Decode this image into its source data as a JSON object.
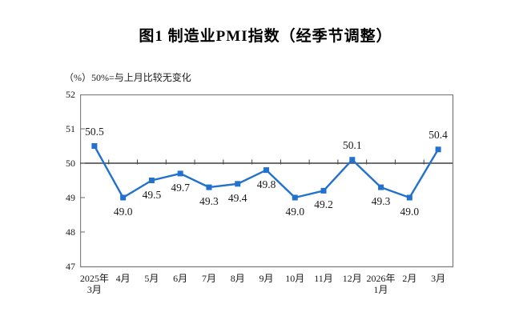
{
  "header": {
    "title": "图1  制造业PMI指数（经季节调整）"
  },
  "chart_data": {
    "type": "line",
    "title": "图1  制造业PMI指数（经季节调整）",
    "unit_note": "（%）50%=与上月比较无变化",
    "categories": [
      "2025年3月",
      "4月",
      "5月",
      "6月",
      "7月",
      "8月",
      "9月",
      "10月",
      "11月",
      "12月",
      "2026年1月",
      "2月",
      "3月"
    ],
    "x_tick_lines": [
      [
        "2025年",
        "3月"
      ],
      [
        "4月"
      ],
      [
        "5月"
      ],
      [
        "6月"
      ],
      [
        "7月"
      ],
      [
        "8月"
      ],
      [
        "9月"
      ],
      [
        "10月"
      ],
      [
        "11月"
      ],
      [
        "12月"
      ],
      [
        "2026年",
        "1月"
      ],
      [
        "2月"
      ],
      [
        "3月"
      ]
    ],
    "series": [
      {
        "name": "制造业PMI指数",
        "values": [
          50.5,
          49.0,
          49.5,
          49.7,
          49.3,
          49.4,
          49.8,
          49.0,
          49.2,
          50.1,
          49.3,
          49.0,
          50.4
        ]
      }
    ],
    "point_labels": [
      "50.5",
      "49.0",
      "49.5",
      "49.7",
      "49.3",
      "49.4",
      "49.8",
      "49.0",
      "49.2",
      "50.1",
      "49.3",
      "49.0",
      "50.4"
    ],
    "label_side": [
      "above",
      "below",
      "below",
      "below",
      "below",
      "below",
      "below",
      "below",
      "below",
      "above",
      "below",
      "below",
      "above"
    ],
    "ylim": [
      47,
      52
    ],
    "y_ticks": [
      52,
      51,
      50,
      49,
      48,
      47
    ],
    "reference_line": 50,
    "grid": false,
    "legend": "none",
    "marker": "square",
    "colors": {
      "line": "#2271CE",
      "axis": "#7F7F7F",
      "ref_line": "#3F3F3F",
      "text": "#111111"
    }
  }
}
